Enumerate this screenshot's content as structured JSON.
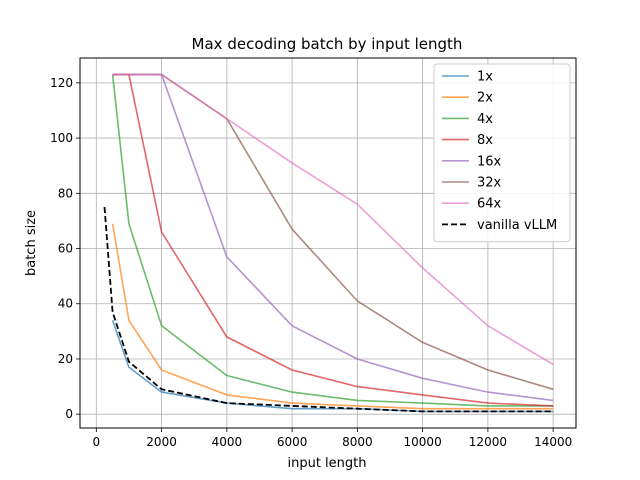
{
  "chart_data": {
    "type": "line",
    "title": "Max decoding batch by input length",
    "xlabel": "input length",
    "ylabel": "batch size",
    "xlim": [
      -500,
      14700
    ],
    "ylim": [
      -5,
      129
    ],
    "xticks": [
      0,
      2000,
      4000,
      6000,
      8000,
      10000,
      12000,
      14000
    ],
    "yticks": [
      0,
      20,
      40,
      60,
      80,
      100,
      120
    ],
    "grid": true,
    "legend_position": "top-right",
    "series": [
      {
        "name": "1x",
        "color": "#1f77b4",
        "dash": false,
        "x": [
          500,
          1000,
          2000,
          4000,
          6000,
          8000,
          10000,
          12000,
          14000
        ],
        "y": [
          34,
          17,
          8,
          4,
          2,
          2,
          1,
          1,
          1
        ]
      },
      {
        "name": "2x",
        "color": "#ff7f0e",
        "dash": false,
        "x": [
          500,
          1000,
          2000,
          4000,
          6000,
          8000,
          10000,
          12000,
          14000
        ],
        "y": [
          69,
          34,
          16,
          7,
          4,
          3,
          2,
          2,
          2
        ]
      },
      {
        "name": "4x",
        "color": "#2ca02c",
        "dash": false,
        "x": [
          500,
          1000,
          2000,
          4000,
          6000,
          8000,
          10000,
          12000,
          14000
        ],
        "y": [
          123,
          69,
          32,
          14,
          8,
          5,
          4,
          3,
          3
        ]
      },
      {
        "name": "8x",
        "color": "#d62728",
        "dash": false,
        "x": [
          500,
          1000,
          2000,
          4000,
          6000,
          8000,
          10000,
          12000,
          14000
        ],
        "y": [
          123,
          123,
          66,
          28,
          16,
          10,
          7,
          4,
          3
        ]
      },
      {
        "name": "16x",
        "color": "#9467bd",
        "dash": false,
        "x": [
          500,
          1000,
          2000,
          4000,
          6000,
          8000,
          10000,
          12000,
          14000
        ],
        "y": [
          123,
          123,
          123,
          57,
          32,
          20,
          13,
          8,
          5
        ]
      },
      {
        "name": "32x",
        "color": "#8c564b",
        "dash": false,
        "x": [
          500,
          1000,
          2000,
          4000,
          6000,
          8000,
          10000,
          12000,
          14000
        ],
        "y": [
          123,
          123,
          123,
          107,
          67,
          41,
          26,
          16,
          9
        ]
      },
      {
        "name": "64x",
        "color": "#e377c2",
        "dash": false,
        "x": [
          500,
          1000,
          2000,
          4000,
          6000,
          8000,
          10000,
          12000,
          14000
        ],
        "y": [
          123,
          123,
          123,
          107,
          91,
          76,
          53,
          32,
          18
        ]
      },
      {
        "name": "vanilla vLLM",
        "color": "#000000",
        "dash": true,
        "x": [
          250,
          500,
          1000,
          2000,
          4000,
          6000,
          8000,
          10000,
          12000,
          14000
        ],
        "y": [
          75,
          37,
          19,
          9,
          4,
          3,
          2,
          1,
          1,
          1
        ]
      }
    ]
  }
}
